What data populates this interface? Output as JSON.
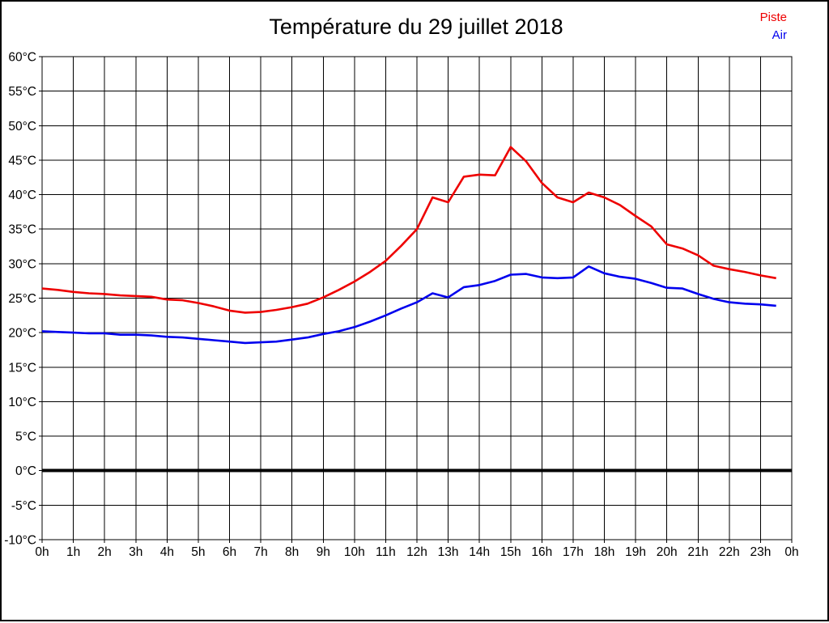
{
  "header": {
    "title": "Température du 29 juillet 2018"
  },
  "legend": {
    "items": [
      {
        "label": "Piste",
        "color": "#ee0000"
      },
      {
        "label": "Air",
        "color": "#0000ee"
      }
    ]
  },
  "colors": {
    "background": "#ffffff",
    "page_border": "#000000",
    "grid": "#000000",
    "zero_line": "#000000",
    "axis_text": "#000000",
    "title_text": "#000000"
  },
  "chart_data": {
    "type": "line",
    "title": "Température du 29 juillet 2018",
    "xlabel": "",
    "ylabel": "",
    "xlim": [
      0,
      24
    ],
    "ylim": [
      -10,
      60
    ],
    "x_tick_interval": 1,
    "y_tick_interval": 5,
    "grid": true,
    "zero_line_bold": true,
    "legend_position": "top-right",
    "x_tick_labels": [
      "0h",
      "1h",
      "2h",
      "3h",
      "4h",
      "5h",
      "6h",
      "7h",
      "8h",
      "9h",
      "10h",
      "11h",
      "12h",
      "13h",
      "14h",
      "15h",
      "16h",
      "17h",
      "18h",
      "19h",
      "20h",
      "21h",
      "22h",
      "23h",
      "0h"
    ],
    "y_tick_labels": [
      "60°C",
      "55°C",
      "50°C",
      "45°C",
      "40°C",
      "35°C",
      "30°C",
      "25°C",
      "20°C",
      "15°C",
      "10°C",
      "5°C",
      "0°C",
      "-5°C",
      "-10°C"
    ],
    "x": [
      0,
      0.5,
      1,
      1.5,
      2,
      2.5,
      3,
      3.5,
      4,
      4.5,
      5,
      5.5,
      6,
      6.5,
      7,
      7.5,
      8,
      8.5,
      9,
      9.5,
      10,
      10.5,
      11,
      11.5,
      12,
      12.5,
      13,
      13.5,
      14,
      14.5,
      15,
      15.5,
      16,
      16.5,
      17,
      17.5,
      18,
      18.5,
      19,
      19.5,
      20,
      20.5,
      21,
      21.5,
      22,
      22.5,
      23,
      23.5
    ],
    "series": [
      {
        "name": "Piste",
        "color": "#ee0000",
        "values": [
          26.4,
          26.2,
          25.9,
          25.7,
          25.6,
          25.4,
          25.3,
          25.2,
          24.8,
          24.7,
          24.3,
          23.8,
          23.2,
          22.9,
          23.0,
          23.3,
          23.7,
          24.2,
          25.1,
          26.2,
          27.4,
          28.8,
          30.4,
          32.6,
          35.0,
          39.6,
          38.9,
          42.6,
          42.9,
          42.8,
          46.9,
          44.8,
          41.7,
          39.6,
          38.9,
          40.3,
          39.6,
          38.5,
          36.9,
          35.4,
          32.8,
          32.2,
          31.2,
          29.7,
          29.2,
          28.8,
          28.3,
          27.9
        ]
      },
      {
        "name": "Air",
        "color": "#0000ee",
        "values": [
          20.2,
          20.1,
          20.0,
          19.9,
          19.9,
          19.7,
          19.7,
          19.6,
          19.4,
          19.3,
          19.1,
          18.9,
          18.7,
          18.5,
          18.6,
          18.7,
          19.0,
          19.3,
          19.8,
          20.2,
          20.8,
          21.6,
          22.5,
          23.5,
          24.4,
          25.7,
          25.1,
          26.6,
          26.9,
          27.5,
          28.4,
          28.5,
          28.0,
          27.9,
          28.0,
          29.6,
          28.6,
          28.1,
          27.8,
          27.2,
          26.5,
          26.4,
          25.6,
          24.9,
          24.4,
          24.2,
          24.1,
          23.9
        ]
      }
    ]
  }
}
